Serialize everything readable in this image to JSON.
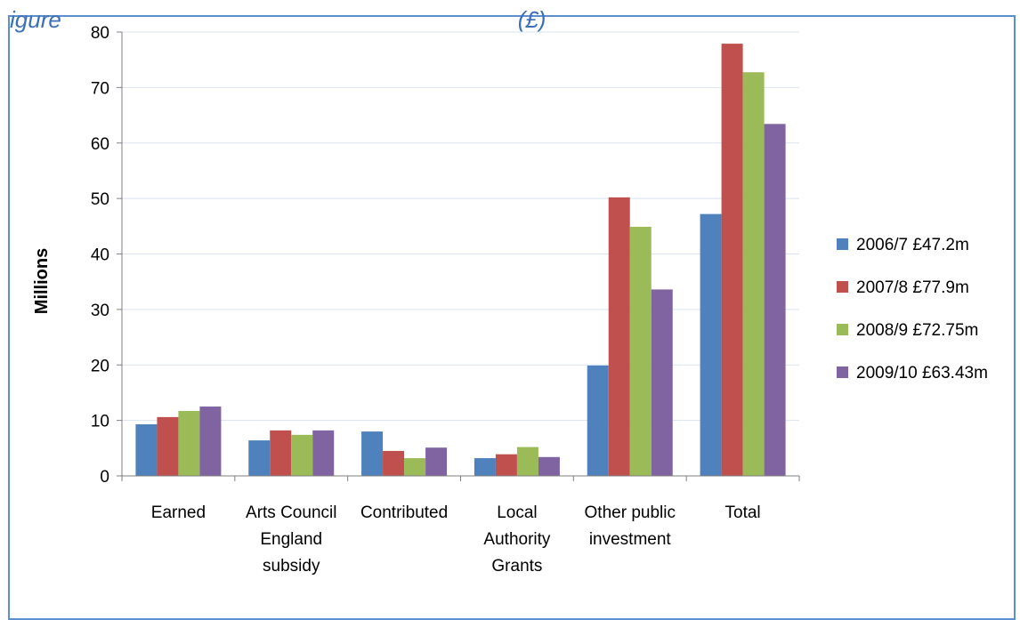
{
  "caption": "igure                                                                       (£)",
  "chart_data": {
    "type": "bar",
    "title": "",
    "xlabel": "",
    "ylabel": "Millions",
    "ylim": [
      0,
      80
    ],
    "yticks": [
      0,
      10,
      20,
      30,
      40,
      50,
      60,
      70,
      80
    ],
    "grid": true,
    "legend_position": "right",
    "categories": [
      [
        "Earned"
      ],
      [
        "Arts Council",
        "England",
        "subsidy"
      ],
      [
        "Contributed"
      ],
      [
        "Local",
        "Authority",
        "Grants"
      ],
      [
        "Other public",
        "investment"
      ],
      [
        "Total"
      ]
    ],
    "series": [
      {
        "name": "2006/7 £47.2m",
        "color": "#4f81bd",
        "values": [
          9.3,
          6.4,
          8.0,
          3.2,
          19.9,
          47.2
        ]
      },
      {
        "name": "2007/8 £77.9m",
        "color": "#c0504d",
        "values": [
          10.6,
          8.2,
          4.5,
          3.9,
          50.2,
          77.9
        ]
      },
      {
        "name": "2008/9 £72.75m",
        "color": "#9bbb59",
        "values": [
          11.7,
          7.4,
          3.2,
          5.2,
          44.9,
          72.75
        ]
      },
      {
        "name": "2009/10 £63.43m",
        "color": "#8064a2",
        "values": [
          12.5,
          8.2,
          5.1,
          3.4,
          33.6,
          63.43
        ]
      }
    ]
  }
}
